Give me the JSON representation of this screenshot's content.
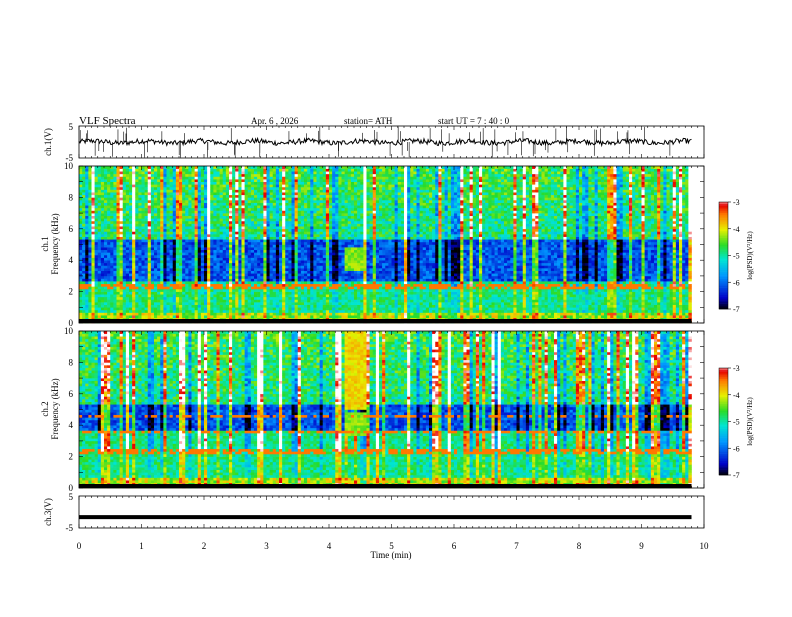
{
  "header": {
    "title": "VLF  Spectra",
    "date": "Apr. 6  , 2026",
    "station": "station= ATH",
    "start": "start  UT  =   7  : 40 : 0"
  },
  "chart_data": [
    {
      "id": "ch1-waveform",
      "type": "line",
      "ylabel": "ch.1(V)",
      "ylim": [
        -5,
        5
      ],
      "ytick_labels": [
        "5",
        "-5"
      ],
      "xlim": [
        0,
        10
      ],
      "data_end_min": 9.8,
      "baseline": 0
    },
    {
      "id": "ch1-spectrogram",
      "type": "heatmap",
      "ylabel": "ch.1\nFrequency  (kHz)",
      "ylabel_lines": [
        "ch.1",
        "Frequency  (kHz)"
      ],
      "ylim": [
        0,
        10
      ],
      "ytick_labels": [
        "10",
        "8",
        "6",
        "4",
        "2",
        "0"
      ],
      "xlim": [
        0,
        10
      ],
      "data_end_min": 9.8,
      "colorbar": {
        "label": "log(PSD)(V²/Hz)",
        "range": [
          -7,
          -3
        ],
        "tick_labels": [
          "-3",
          "-4",
          "-5",
          "-6",
          "-7"
        ]
      }
    },
    {
      "id": "ch2-spectrogram",
      "type": "heatmap",
      "ylabel": "ch.2\nFrequency  (kHz)",
      "ylabel_lines": [
        "ch.2",
        "Frequency  (kHz)"
      ],
      "ylim": [
        0,
        10
      ],
      "ytick_labels": [
        "10",
        "8",
        "6",
        "4",
        "2",
        "0"
      ],
      "xlim": [
        0,
        10
      ],
      "data_end_min": 9.8,
      "colorbar": {
        "label": "log(PSD)(V²/Hz)",
        "range": [
          -7,
          -3
        ],
        "tick_labels": [
          "-3",
          "-4",
          "-5",
          "-6",
          "-7"
        ]
      }
    },
    {
      "id": "ch3-waveform",
      "type": "line",
      "ylabel": "ch.3(V)",
      "ylim": [
        -5,
        5
      ],
      "ytick_labels": [
        "5",
        "-5"
      ],
      "xlim": [
        0,
        10
      ],
      "data_end_min": 9.8,
      "baseline": -1.6
    }
  ],
  "xaxis": {
    "label": "Time  (min)",
    "tick_labels": [
      "0",
      "1",
      "2",
      "3",
      "4",
      "5",
      "6",
      "7",
      "8",
      "9",
      "10"
    ]
  }
}
